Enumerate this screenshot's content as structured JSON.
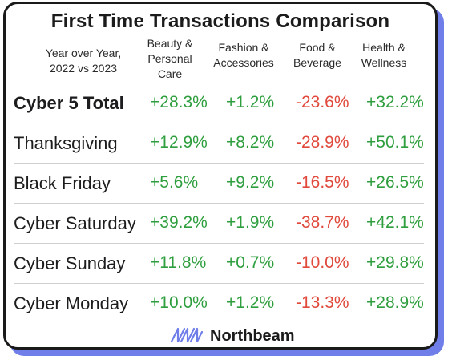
{
  "colors": {
    "positive": "#2e9e3e",
    "negative": "#e0493c",
    "brand_accent": "#6f7ee8"
  },
  "chart_data": {
    "type": "table",
    "title": "First Time Transactions Comparison",
    "row_header": "Year over Year,\n2022 vs 2023",
    "columns": [
      "Beauty &\nPersonal\nCare",
      "Fashion &\nAccessories",
      "Food &\nBeverage",
      "Health &\nWellness"
    ],
    "rows": [
      {
        "label": "Cyber 5 Total",
        "values": [
          "+28.3%",
          "+1.2%",
          "-23.6%",
          "+32.2%"
        ]
      },
      {
        "label": "Thanksgiving",
        "values": [
          "+12.9%",
          "+8.2%",
          "-28.9%",
          "+50.1%"
        ]
      },
      {
        "label": "Black Friday",
        "values": [
          "+5.6%",
          "+9.2%",
          "-16.5%",
          "+26.5%"
        ]
      },
      {
        "label": "Cyber Saturday",
        "values": [
          "+39.2%",
          "+1.9%",
          "-38.7%",
          "+42.1%"
        ]
      },
      {
        "label": "Cyber Sunday",
        "values": [
          "+11.8%",
          "+0.7%",
          "-10.0%",
          "+29.8%"
        ]
      },
      {
        "label": "Cyber Monday",
        "values": [
          "+10.0%",
          "+1.2%",
          "-13.3%",
          "+28.9%"
        ]
      }
    ]
  },
  "brand": {
    "name": "Northbeam",
    "icon": "northbeam-logo-icon"
  }
}
